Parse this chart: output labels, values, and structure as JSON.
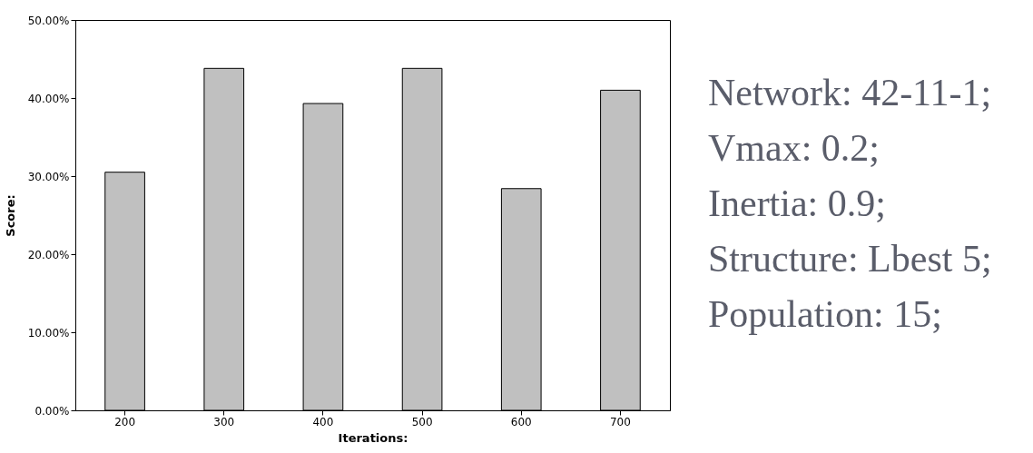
{
  "chart_data": {
    "type": "bar",
    "xlabel": "Iterations:",
    "ylabel": "Score:",
    "categories": [
      "200",
      "300",
      "400",
      "500",
      "600",
      "700"
    ],
    "values": [
      30.5,
      43.8,
      39.3,
      43.8,
      28.4,
      41.0
    ],
    "color": "#c0c0c0",
    "ylim": [
      0,
      50
    ],
    "yticks": [
      {
        "value": 0,
        "label": "0.00%"
      },
      {
        "value": 10,
        "label": "10.00%"
      },
      {
        "value": 20,
        "label": "20.00%"
      },
      {
        "value": 30,
        "label": "30.00%"
      },
      {
        "value": 40,
        "label": "40.00%"
      },
      {
        "value": 50,
        "label": "50.00%"
      }
    ],
    "grid": false,
    "annotations": [
      "Network: 42-11-1;",
      "Vmax: 0.2;",
      "Inertia: 0.9;",
      "Structure: Lbest 5;",
      "Population: 15;"
    ]
  }
}
